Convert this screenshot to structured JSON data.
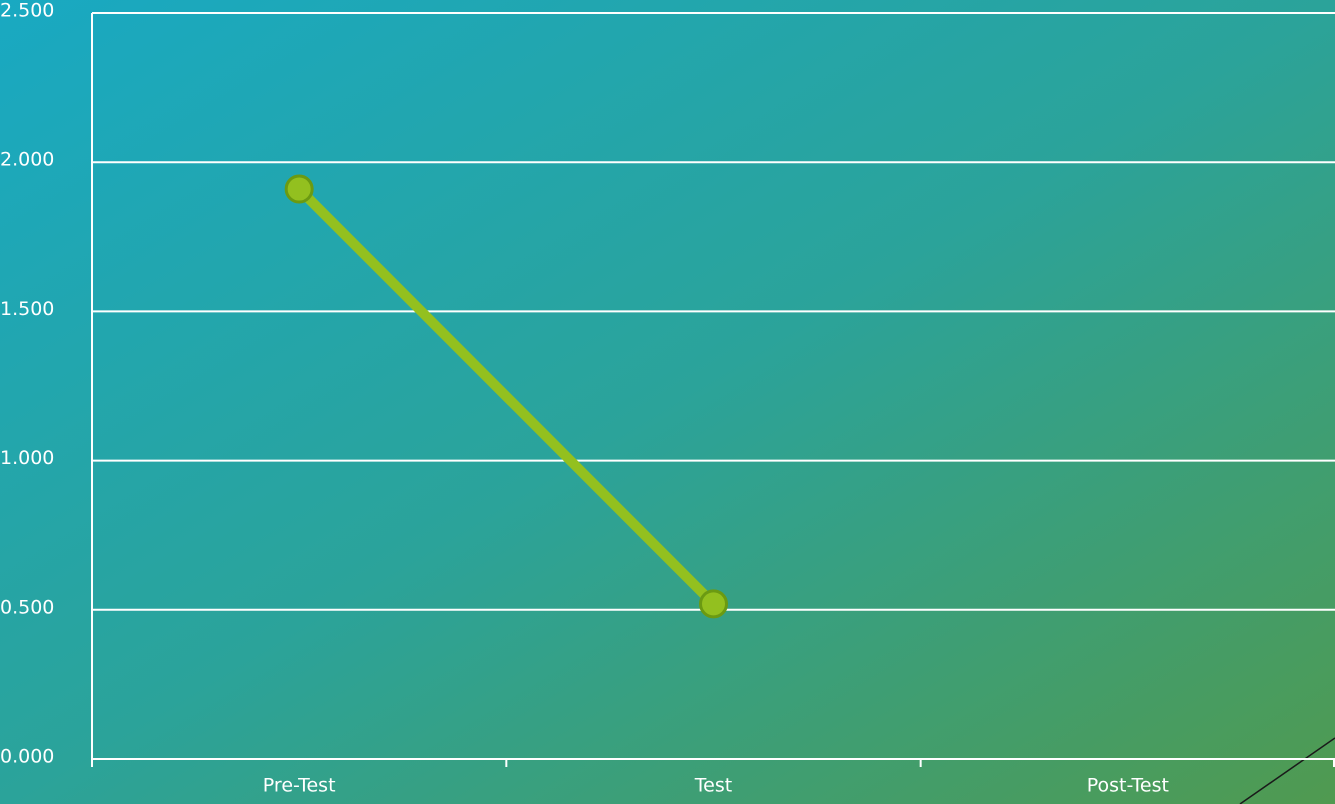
{
  "chart_data": {
    "type": "line",
    "categories": [
      "Pre-Test",
      "Test",
      "Post-Test"
    ],
    "values": [
      1.91,
      0.52,
      null
    ],
    "color": "#93c01f",
    "ylim": [
      0,
      2.5
    ],
    "yticks": [
      {
        "value": 0,
        "label": "0.000"
      },
      {
        "value": 0.5,
        "label": "0.500"
      },
      {
        "value": 1,
        "label": "1.000"
      },
      {
        "value": 1.5,
        "label": "1.500"
      },
      {
        "value": 2,
        "label": "2.000"
      },
      {
        "value": 2.5,
        "label": "2.500"
      }
    ],
    "grid": true
  }
}
